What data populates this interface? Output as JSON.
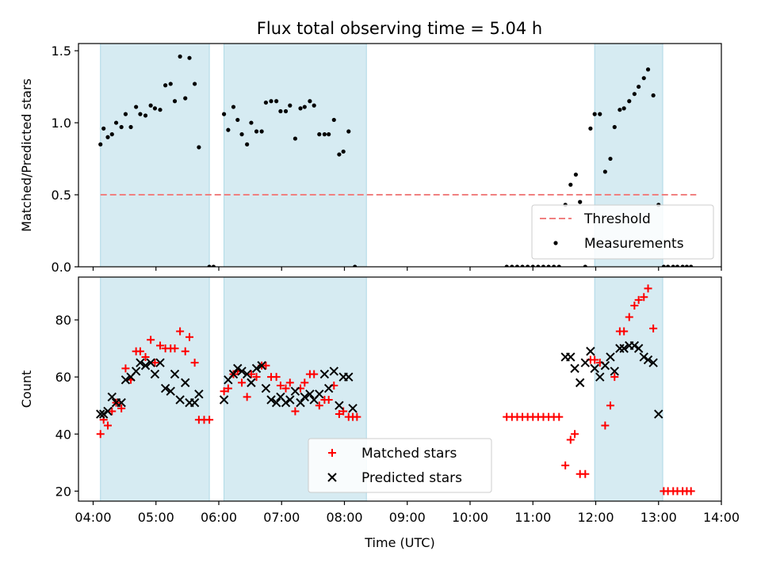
{
  "title": "Flux total observing time = 5.04 h",
  "chart_data": [
    {
      "type": "scatter",
      "ylabel": "Matched/Predicted stars",
      "ylim": [
        0,
        1.55
      ],
      "yticks": [
        "0.0",
        "0.5",
        "1.0",
        "1.5"
      ],
      "xlim": [
        "03:46",
        "14:00"
      ],
      "grid": false,
      "legend_position": "bottom-right",
      "shaded_intervals": [
        [
          "04:07",
          "05:51"
        ],
        [
          "06:05",
          "08:21"
        ],
        [
          "11:59",
          "13:04"
        ]
      ],
      "threshold": {
        "name": "Threshold",
        "value": 0.5,
        "x_range": [
          "04:07",
          "13:36"
        ],
        "color": "#f08080"
      },
      "series": [
        {
          "name": "Measurements",
          "color": "#000000",
          "points": [
            [
              "04:07",
              0.85
            ],
            [
              "04:10",
              0.96
            ],
            [
              "04:14",
              0.9
            ],
            [
              "04:18",
              0.92
            ],
            [
              "04:22",
              1.0
            ],
            [
              "04:27",
              0.97
            ],
            [
              "04:31",
              1.06
            ],
            [
              "04:36",
              0.97
            ],
            [
              "04:41",
              1.11
            ],
            [
              "04:45",
              1.06
            ],
            [
              "04:50",
              1.05
            ],
            [
              "04:55",
              1.12
            ],
            [
              "04:59",
              1.1
            ],
            [
              "05:04",
              1.09
            ],
            [
              "05:09",
              1.26
            ],
            [
              "05:14",
              1.27
            ],
            [
              "05:18",
              1.15
            ],
            [
              "05:23",
              1.46
            ],
            [
              "05:28",
              1.17
            ],
            [
              "05:32",
              1.45
            ],
            [
              "05:37",
              1.27
            ],
            [
              "05:41",
              0.83
            ],
            [
              "05:51",
              0.0
            ],
            [
              "05:55",
              0.0
            ],
            [
              "06:05",
              1.06
            ],
            [
              "06:09",
              0.95
            ],
            [
              "06:14",
              1.11
            ],
            [
              "06:18",
              1.02
            ],
            [
              "06:22",
              0.92
            ],
            [
              "06:27",
              0.85
            ],
            [
              "06:31",
              1.0
            ],
            [
              "06:36",
              0.94
            ],
            [
              "06:41",
              0.94
            ],
            [
              "06:45",
              1.14
            ],
            [
              "06:50",
              1.15
            ],
            [
              "06:55",
              1.15
            ],
            [
              "06:59",
              1.08
            ],
            [
              "07:04",
              1.08
            ],
            [
              "07:08",
              1.12
            ],
            [
              "07:13",
              0.89
            ],
            [
              "07:18",
              1.1
            ],
            [
              "07:22",
              1.11
            ],
            [
              "07:27",
              1.15
            ],
            [
              "07:31",
              1.12
            ],
            [
              "07:36",
              0.92
            ],
            [
              "07:41",
              0.92
            ],
            [
              "07:45",
              0.92
            ],
            [
              "07:50",
              1.02
            ],
            [
              "07:55",
              0.78
            ],
            [
              "07:59",
              0.8
            ],
            [
              "08:04",
              0.94
            ],
            [
              "08:10",
              0.0
            ],
            [
              "10:35",
              0.0
            ],
            [
              "10:40",
              0.0
            ],
            [
              "10:45",
              0.0
            ],
            [
              "10:50",
              0.0
            ],
            [
              "10:55",
              0.0
            ],
            [
              "11:00",
              0.0
            ],
            [
              "11:05",
              0.0
            ],
            [
              "11:10",
              0.0
            ],
            [
              "11:15",
              0.0
            ],
            [
              "11:20",
              0.0
            ],
            [
              "11:25",
              0.0
            ],
            [
              "11:31",
              0.43
            ],
            [
              "11:36",
              0.57
            ],
            [
              "11:41",
              0.64
            ],
            [
              "11:45",
              0.45
            ],
            [
              "11:50",
              0.0
            ],
            [
              "11:55",
              0.96
            ],
            [
              "11:59",
              1.06
            ],
            [
              "12:04",
              1.06
            ],
            [
              "12:09",
              0.66
            ],
            [
              "12:14",
              0.75
            ],
            [
              "12:18",
              0.97
            ],
            [
              "12:23",
              1.09
            ],
            [
              "12:27",
              1.1
            ],
            [
              "12:32",
              1.15
            ],
            [
              "12:37",
              1.2
            ],
            [
              "12:41",
              1.25
            ],
            [
              "12:46",
              1.31
            ],
            [
              "12:50",
              1.37
            ],
            [
              "12:55",
              1.19
            ],
            [
              "13:00",
              0.43
            ],
            [
              "13:05",
              0.0
            ],
            [
              "13:09",
              0.0
            ],
            [
              "13:14",
              0.0
            ],
            [
              "13:18",
              0.0
            ],
            [
              "13:23",
              0.0
            ],
            [
              "13:27",
              0.0
            ],
            [
              "13:31",
              0.0
            ]
          ]
        }
      ]
    },
    {
      "type": "scatter",
      "xlabel": "Time (UTC)",
      "ylabel": "Count",
      "ylim": [
        16.5,
        95
      ],
      "yticks": [
        "20",
        "40",
        "60",
        "80"
      ],
      "xlim": [
        "03:46",
        "14:00"
      ],
      "xticks": [
        "04:00",
        "05:00",
        "06:00",
        "07:00",
        "08:00",
        "09:00",
        "10:00",
        "11:00",
        "12:00",
        "13:00",
        "14:00"
      ],
      "grid": false,
      "legend_position": "bottom-center",
      "shaded_intervals": [
        [
          "04:07",
          "05:51"
        ],
        [
          "06:05",
          "08:21"
        ],
        [
          "11:59",
          "13:04"
        ]
      ],
      "series": [
        {
          "name": "Matched stars",
          "marker": "plus",
          "color": "#ff0000",
          "points": [
            [
              "04:07",
              40
            ],
            [
              "04:10",
              45
            ],
            [
              "04:14",
              43
            ],
            [
              "04:18",
              48
            ],
            [
              "04:22",
              51
            ],
            [
              "04:27",
              49
            ],
            [
              "04:31",
              63
            ],
            [
              "04:36",
              59
            ],
            [
              "04:41",
              69
            ],
            [
              "04:45",
              69
            ],
            [
              "04:50",
              67
            ],
            [
              "04:55",
              73
            ],
            [
              "04:59",
              65
            ],
            [
              "05:04",
              71
            ],
            [
              "05:09",
              70
            ],
            [
              "05:14",
              70
            ],
            [
              "05:18",
              70
            ],
            [
              "05:23",
              76
            ],
            [
              "05:28",
              69
            ],
            [
              "05:32",
              74
            ],
            [
              "05:37",
              65
            ],
            [
              "05:41",
              45
            ],
            [
              "05:46",
              45
            ],
            [
              "05:51",
              45
            ],
            [
              "06:05",
              55
            ],
            [
              "06:09",
              56
            ],
            [
              "06:14",
              61
            ],
            [
              "06:18",
              62
            ],
            [
              "06:22",
              58
            ],
            [
              "06:27",
              53
            ],
            [
              "06:31",
              61
            ],
            [
              "06:36",
              60
            ],
            [
              "06:41",
              64
            ],
            [
              "06:45",
              64
            ],
            [
              "06:50",
              60
            ],
            [
              "06:55",
              60
            ],
            [
              "06:59",
              57
            ],
            [
              "07:04",
              56
            ],
            [
              "07:08",
              58
            ],
            [
              "07:13",
              48
            ],
            [
              "07:18",
              56
            ],
            [
              "07:22",
              58
            ],
            [
              "07:27",
              61
            ],
            [
              "07:31",
              61
            ],
            [
              "07:36",
              50
            ],
            [
              "07:41",
              52
            ],
            [
              "07:45",
              52
            ],
            [
              "07:50",
              57
            ],
            [
              "07:55",
              47
            ],
            [
              "07:59",
              48
            ],
            [
              "08:04",
              46
            ],
            [
              "08:08",
              46
            ],
            [
              "08:12",
              46
            ],
            [
              "10:35",
              46
            ],
            [
              "10:40",
              46
            ],
            [
              "10:45",
              46
            ],
            [
              "10:50",
              46
            ],
            [
              "10:55",
              46
            ],
            [
              "11:00",
              46
            ],
            [
              "11:05",
              46
            ],
            [
              "11:10",
              46
            ],
            [
              "11:15",
              46
            ],
            [
              "11:20",
              46
            ],
            [
              "11:25",
              46
            ],
            [
              "11:31",
              29
            ],
            [
              "11:36",
              38
            ],
            [
              "11:40",
              40
            ],
            [
              "11:45",
              26
            ],
            [
              "11:50",
              26
            ],
            [
              "11:55",
              66
            ],
            [
              "11:59",
              66
            ],
            [
              "12:04",
              65
            ],
            [
              "12:09",
              43
            ],
            [
              "12:14",
              50
            ],
            [
              "12:18",
              60
            ],
            [
              "12:23",
              76
            ],
            [
              "12:27",
              76
            ],
            [
              "12:32",
              81
            ],
            [
              "12:37",
              85
            ],
            [
              "12:41",
              87
            ],
            [
              "12:46",
              88
            ],
            [
              "12:50",
              91
            ],
            [
              "12:55",
              77
            ],
            [
              "13:05",
              20
            ],
            [
              "13:09",
              20
            ],
            [
              "13:14",
              20
            ],
            [
              "13:18",
              20
            ],
            [
              "13:23",
              20
            ],
            [
              "13:27",
              20
            ],
            [
              "13:31",
              20
            ]
          ]
        },
        {
          "name": "Predicted stars",
          "marker": "x",
          "color": "#000000",
          "points": [
            [
              "04:07",
              47
            ],
            [
              "04:10",
              47
            ],
            [
              "04:14",
              48
            ],
            [
              "04:18",
              53
            ],
            [
              "04:22",
              51
            ],
            [
              "04:27",
              51
            ],
            [
              "04:31",
              59
            ],
            [
              "04:36",
              60
            ],
            [
              "04:41",
              62
            ],
            [
              "04:45",
              65
            ],
            [
              "04:50",
              64
            ],
            [
              "04:55",
              65
            ],
            [
              "04:59",
              61
            ],
            [
              "05:04",
              65
            ],
            [
              "05:09",
              56
            ],
            [
              "05:14",
              55
            ],
            [
              "05:18",
              61
            ],
            [
              "05:23",
              52
            ],
            [
              "05:28",
              58
            ],
            [
              "05:32",
              51
            ],
            [
              "05:37",
              51
            ],
            [
              "05:41",
              54
            ],
            [
              "06:05",
              52
            ],
            [
              "06:09",
              59
            ],
            [
              "06:14",
              61
            ],
            [
              "06:18",
              63
            ],
            [
              "06:22",
              62
            ],
            [
              "06:27",
              61
            ],
            [
              "06:31",
              58
            ],
            [
              "06:36",
              63
            ],
            [
              "06:41",
              64
            ],
            [
              "06:45",
              56
            ],
            [
              "06:50",
              52
            ],
            [
              "06:55",
              51
            ],
            [
              "06:59",
              53
            ],
            [
              "07:04",
              51
            ],
            [
              "07:08",
              52
            ],
            [
              "07:13",
              55
            ],
            [
              "07:18",
              51
            ],
            [
              "07:22",
              53
            ],
            [
              "07:27",
              54
            ],
            [
              "07:31",
              52
            ],
            [
              "07:36",
              54
            ],
            [
              "07:41",
              61
            ],
            [
              "07:45",
              56
            ],
            [
              "07:50",
              62
            ],
            [
              "07:55",
              50
            ],
            [
              "07:59",
              60
            ],
            [
              "08:04",
              60
            ],
            [
              "08:08",
              49
            ],
            [
              "11:31",
              67
            ],
            [
              "11:36",
              67
            ],
            [
              "11:40",
              63
            ],
            [
              "11:45",
              58
            ],
            [
              "11:50",
              65
            ],
            [
              "11:55",
              69
            ],
            [
              "11:59",
              63
            ],
            [
              "12:04",
              60
            ],
            [
              "12:09",
              64
            ],
            [
              "12:14",
              67
            ],
            [
              "12:18",
              62
            ],
            [
              "12:23",
              70
            ],
            [
              "12:27",
              70
            ],
            [
              "12:32",
              71
            ],
            [
              "12:37",
              71
            ],
            [
              "12:41",
              70
            ],
            [
              "12:46",
              67
            ],
            [
              "12:50",
              66
            ],
            [
              "12:55",
              65
            ],
            [
              "13:00",
              47
            ]
          ]
        }
      ]
    }
  ]
}
